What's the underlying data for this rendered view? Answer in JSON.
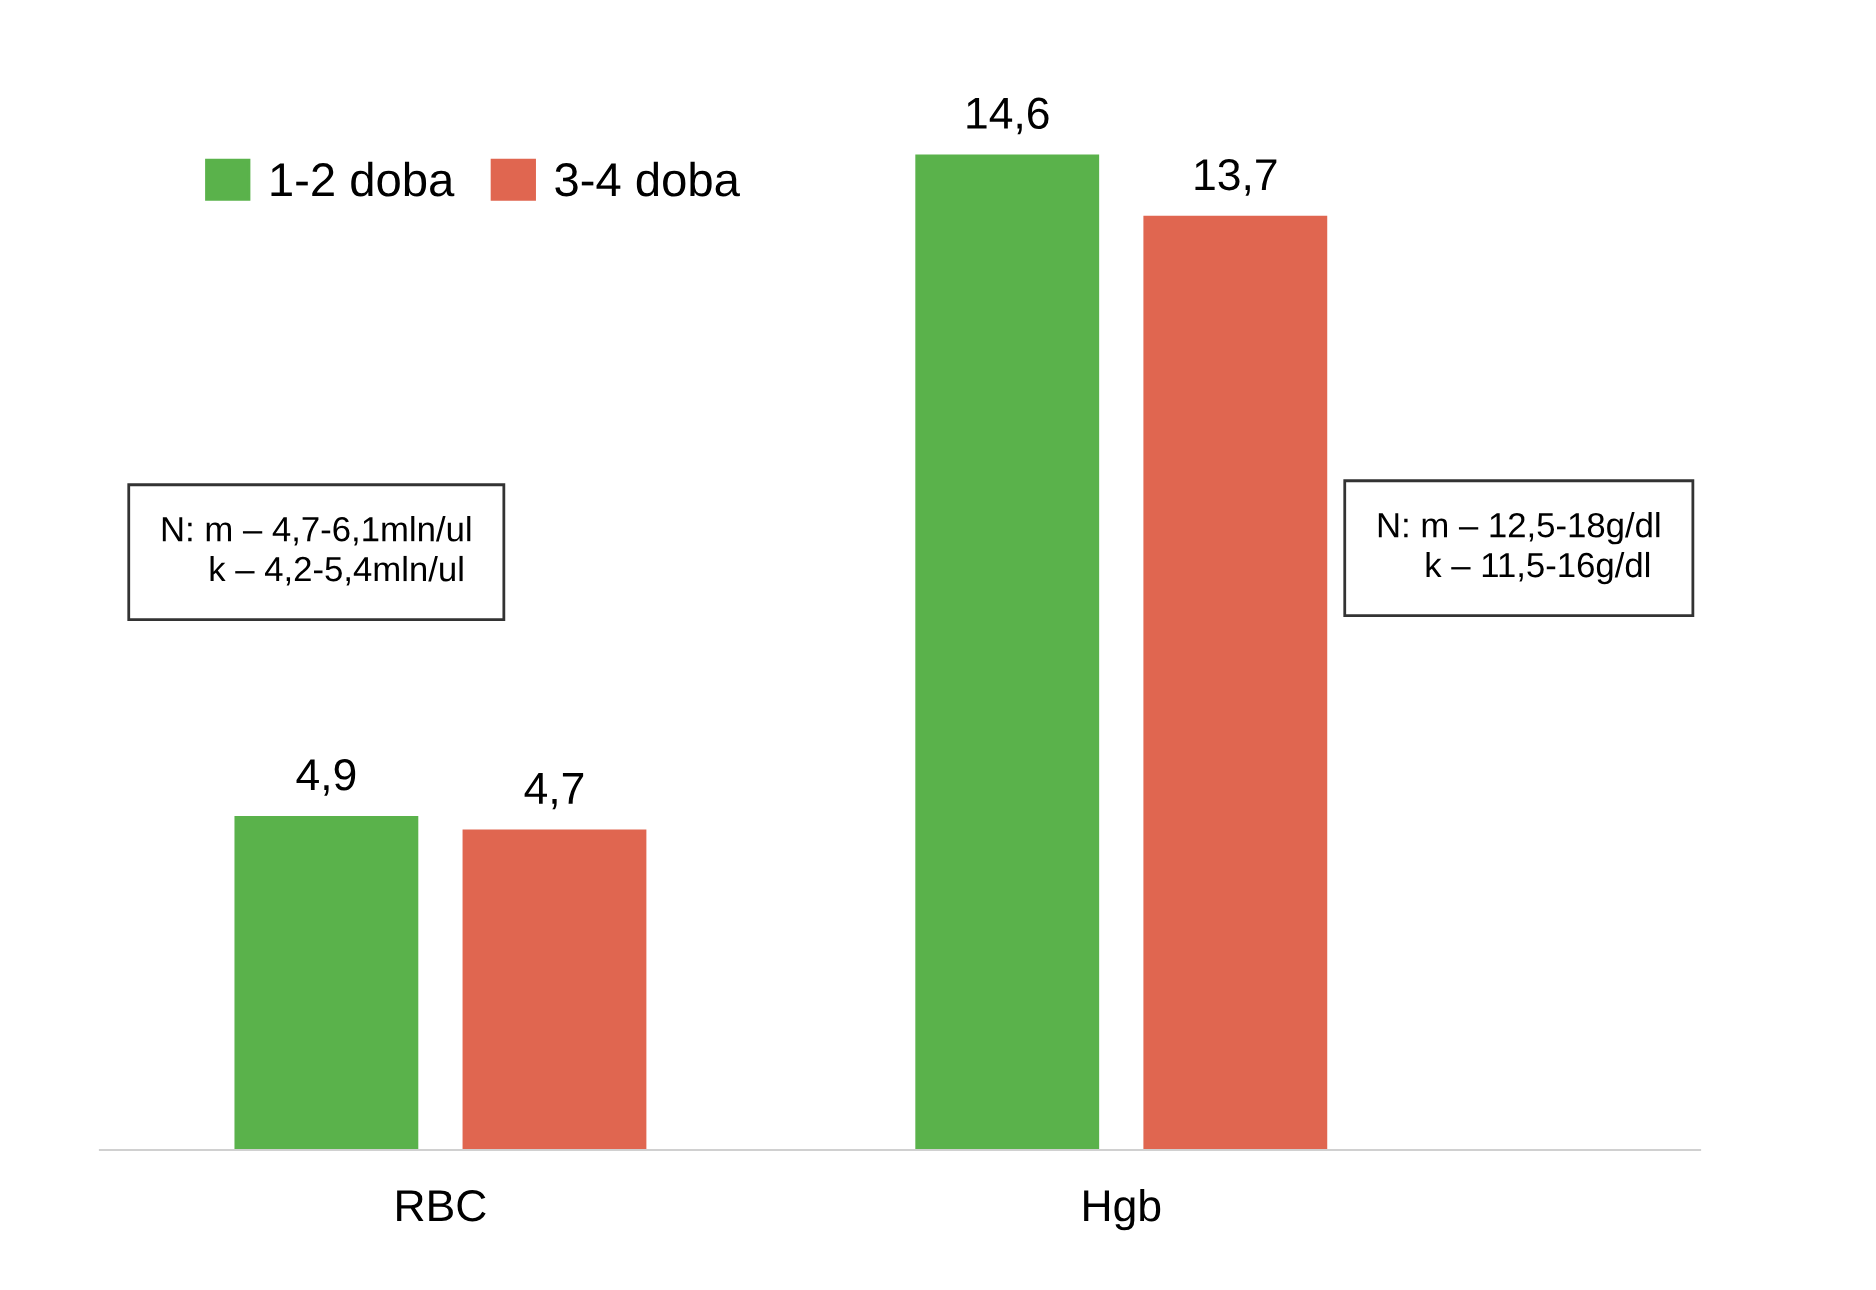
{
  "chart_data": {
    "type": "bar",
    "categories": [
      "RBC",
      "Hgb"
    ],
    "series": [
      {
        "name": "1-2 doba",
        "color": "#5ab24b",
        "values": [
          4.9,
          14.6
        ],
        "value_labels": [
          "4,9",
          "14,6"
        ]
      },
      {
        "name": "3-4 doba",
        "color": "#e06650",
        "values": [
          4.7,
          13.7
        ],
        "value_labels": [
          "4,7",
          "13,7"
        ]
      }
    ],
    "annotations": [
      "N: m – 4,7-6,1mln/ul\n     k – 4,2-5,4mln/ul",
      "N: m – 12,5-18g/dl\n     k – 11,5-16g/dl"
    ],
    "legend": "top left",
    "grid": false
  }
}
